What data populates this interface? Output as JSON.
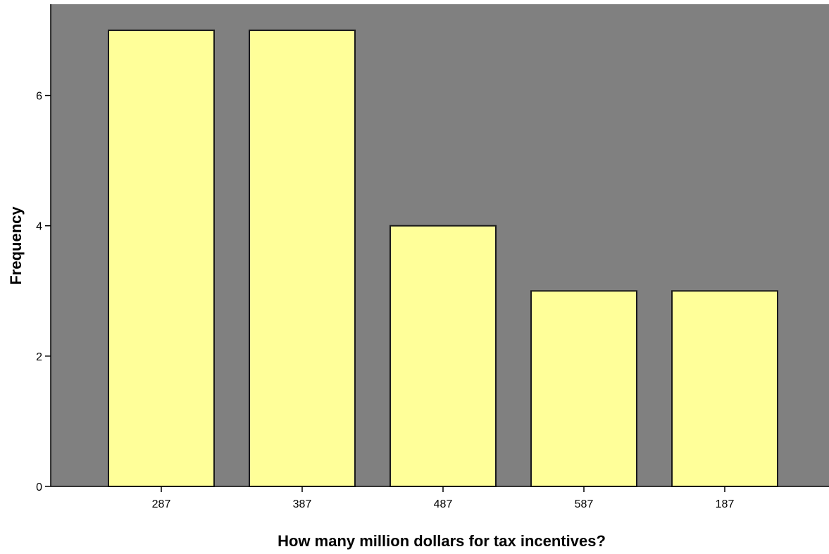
{
  "chart_data": {
    "type": "bar",
    "categories": [
      "287",
      "387",
      "487",
      "587",
      "187"
    ],
    "values": [
      7,
      7,
      4,
      3,
      3
    ],
    "title": "",
    "xlabel": "How many million dollars for tax incentives?",
    "ylabel": "Frequency",
    "ylim": [
      0,
      7.4
    ],
    "yticks": [
      "0",
      "2",
      "4",
      "6"
    ],
    "grid": false,
    "legend": "none",
    "colors": {
      "plot_background": "#808080",
      "bar_fill": "#ffff99",
      "bar_stroke": "#1a1a1a",
      "axis": "#000000"
    }
  }
}
